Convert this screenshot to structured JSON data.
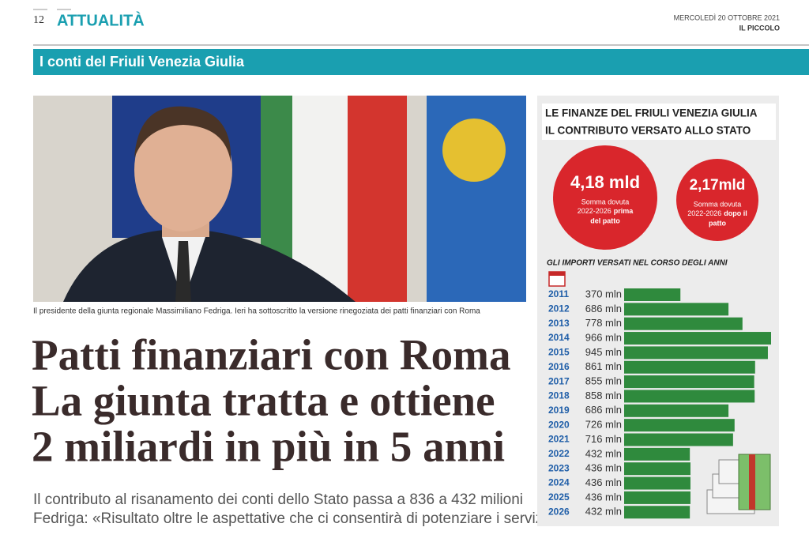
{
  "header": {
    "page": "12",
    "section": "ATTUALITÀ",
    "date": "MERCOLEDÌ 20 OTTOBRE 2021",
    "paper": "IL PICCOLO"
  },
  "band": "I conti del Friuli Venezia Giulia",
  "caption": "Il presidente della giunta regionale Massimiliano Fedriga. Ieri ha sottoscritto la versione rinegoziata dei patti finanziari con Roma",
  "headline": [
    "Patti finanziari con Roma",
    "La giunta tratta e ottiene",
    "2 miliardi in più in 5 anni"
  ],
  "subtitle": [
    "Il contributo al risanamento dei conti dello Stato passa a 836 a 432 milioni",
    "Fedriga: «Risultato oltre le aspettative che ci consentirà di potenziare i servizi»"
  ],
  "infographic": {
    "title": [
      "LE FINANZE DEL FRIULI VENEZIA GIULIA",
      "IL CONTRIBUTO VERSATO ALLO STATO"
    ],
    "circles": [
      {
        "amount": "4,18 mld",
        "line1": "Somma dovuta",
        "line2": "2022-2026",
        "bold2": "prima",
        "line3": "del patto"
      },
      {
        "amount": "2,17mld",
        "line1": "Somma dovuta",
        "line2": "2022-2026",
        "bold2": "dopo il",
        "line3": "patto"
      }
    ]
  },
  "chart_data": {
    "type": "bar",
    "orientation": "horizontal",
    "title": "GLI IMPORTI VERSATI NEL CORSO DEGLI ANNI",
    "color": "#2f8a3d",
    "categories": [
      "2011",
      "2012",
      "2013",
      "2014",
      "2015",
      "2016",
      "2017",
      "2018",
      "2019",
      "2020",
      "2021",
      "2022",
      "2023",
      "2024",
      "2025",
      "2026"
    ],
    "values": [
      370,
      686,
      778,
      966,
      945,
      861,
      855,
      858,
      686,
      726,
      716,
      432,
      436,
      436,
      436,
      432
    ],
    "value_labels": [
      "370 mln",
      "686 mln",
      "778 mln",
      "966 mln",
      "945 mln",
      "861 mln",
      "855 mln",
      "858 mln",
      "686 mln",
      "726 mln",
      "716 mln",
      "432 mln",
      "436 mln",
      "436 mln",
      "436 mln",
      "432 mln"
    ]
  }
}
